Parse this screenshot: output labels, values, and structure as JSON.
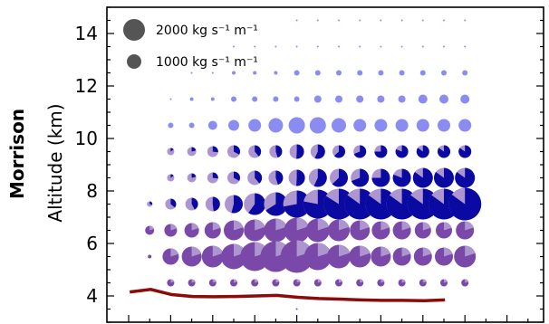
{
  "row_label": "Morrison",
  "chart_data": {
    "type": "scatter",
    "title": "",
    "xlabel": "",
    "ylabel": "Altitude (km)",
    "ylim": [
      3.0,
      15.0
    ],
    "yticks": [
      4,
      6,
      8,
      10,
      12,
      14
    ],
    "grid": false,
    "legend": {
      "placement": "top-left",
      "entries": [
        {
          "label": "2000 kg s⁻¹ m⁻¹",
          "value": 2000
        },
        {
          "label": "1000 kg s⁻¹ m⁻¹",
          "value": 1000
        }
      ]
    },
    "colors": {
      "upper_light": "#8a8cf2",
      "ice_dark_blue": "#0a0aa3",
      "liquid_purple": "#7a48a8",
      "light_purple": "#ad96cf",
      "line": "#8b0a0a"
    },
    "columns": 17,
    "levels": [
      {
        "alt": 14.5,
        "cols": [
          9,
          17
        ],
        "r": [
          1,
          1,
          1,
          1,
          1,
          1,
          1,
          1,
          1
        ]
      },
      {
        "alt": 13.5,
        "cols": [
          6,
          17
        ],
        "r": [
          1,
          1,
          1,
          1,
          1,
          1,
          1,
          1,
          1,
          1,
          1,
          1
        ]
      },
      {
        "alt": 12.5,
        "cols": [
          4,
          17
        ],
        "r": [
          1,
          1,
          2,
          2,
          2,
          3,
          3,
          3,
          3,
          3,
          3,
          3,
          3,
          3
        ]
      },
      {
        "alt": 11.5,
        "cols": [
          3,
          17
        ],
        "r": [
          1,
          2,
          2,
          3,
          3,
          3,
          3,
          4,
          4,
          4,
          4,
          4,
          5,
          5,
          5
        ]
      },
      {
        "alt": 10.5,
        "cols": [
          3,
          17
        ],
        "r": [
          3,
          3,
          5,
          6,
          7,
          8,
          9,
          9,
          8,
          7,
          7,
          7,
          7,
          7,
          7
        ]
      },
      {
        "alt": 9.5,
        "cols": [
          3,
          17
        ],
        "r": [
          4,
          5,
          6,
          7,
          7,
          7,
          8,
          8,
          7,
          7,
          7,
          7,
          7,
          7,
          7
        ]
      },
      {
        "alt": 8.5,
        "cols": [
          3,
          17
        ],
        "r": [
          4,
          5,
          6,
          7,
          8,
          8,
          9,
          10,
          10,
          10,
          10,
          10,
          11,
          11,
          11
        ]
      },
      {
        "alt": 7.5,
        "cols": [
          2,
          17
        ],
        "r": [
          3,
          6,
          7,
          8,
          10,
          12,
          13,
          15,
          16,
          17,
          17,
          17,
          17,
          17,
          17,
          18
        ]
      },
      {
        "alt": 6.5,
        "cols": [
          2,
          17
        ],
        "r": [
          5,
          7,
          8,
          9,
          11,
          12,
          13,
          14,
          13,
          12,
          11,
          10,
          10,
          9,
          9,
          10
        ]
      },
      {
        "alt": 5.5,
        "cols": [
          2,
          17
        ],
        "r": [
          2,
          9,
          11,
          12,
          14,
          16,
          17,
          18,
          15,
          13,
          12,
          11,
          10,
          10,
          10,
          12
        ]
      },
      {
        "alt": 4.5,
        "cols": [
          3,
          17
        ],
        "r": [
          4,
          4,
          4,
          4,
          4,
          4,
          4,
          4,
          4,
          4,
          4,
          4,
          4,
          4,
          4
        ]
      },
      {
        "alt": 3.5,
        "cols": [
          9,
          9
        ],
        "r": [
          1
        ]
      }
    ],
    "line_series": {
      "name": "",
      "y": [
        4.15,
        4.25,
        4.05,
        3.98,
        3.97,
        3.98,
        4.0,
        4.02,
        3.95,
        3.9,
        3.88,
        3.85,
        3.83,
        3.83,
        3.82,
        3.85
      ]
    }
  }
}
